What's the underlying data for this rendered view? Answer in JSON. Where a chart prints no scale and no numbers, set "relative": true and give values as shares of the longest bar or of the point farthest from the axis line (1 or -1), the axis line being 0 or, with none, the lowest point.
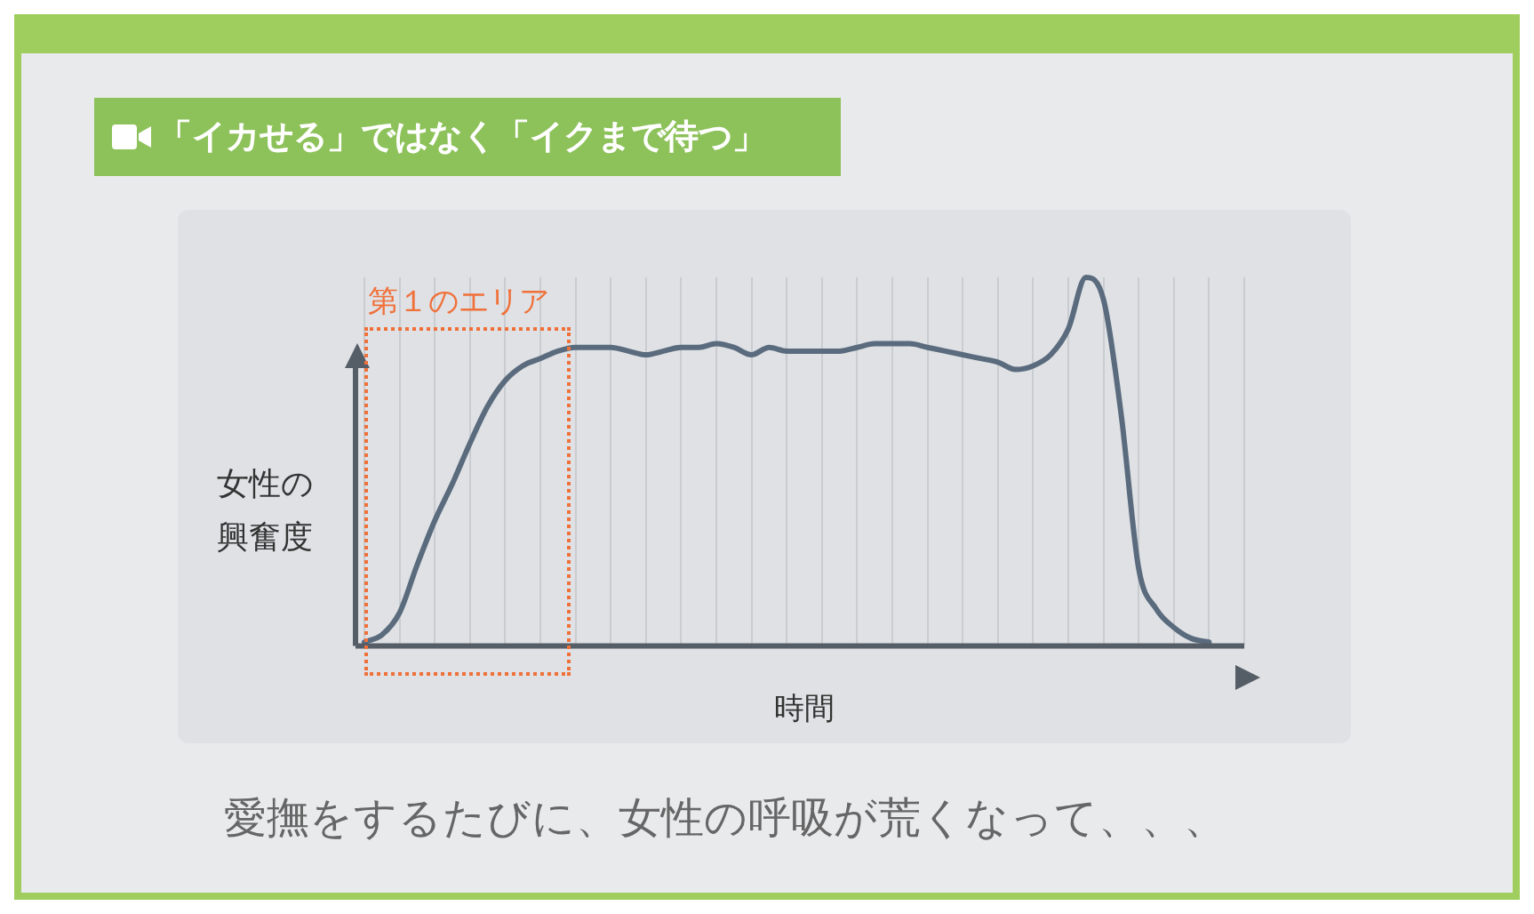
{
  "chart_data": {
    "type": "line",
    "title": "「イカせる」ではなく「イクまで待つ」",
    "xlabel": "時間",
    "ylabel": "女性の興奮度",
    "relative": true,
    "grid": "x",
    "marker": "none",
    "line_style": "solid",
    "legend": false,
    "categories": [
      null,
      null,
      null,
      null,
      null,
      null,
      null,
      null,
      null,
      null,
      null,
      null,
      null,
      null,
      null,
      null,
      null,
      null,
      null,
      null,
      null,
      null,
      null,
      null,
      null,
      null,
      null,
      null,
      null,
      null,
      null,
      null,
      null,
      null,
      null,
      null,
      null,
      null,
      null,
      null,
      null,
      null,
      null,
      null,
      null,
      null,
      null,
      null,
      null,
      null,
      null
    ],
    "series": [
      {
        "color": "#5a6b7e",
        "values": [
          0.01,
          0.03,
          0.09,
          0.22,
          0.34,
          0.44,
          0.55,
          0.65,
          0.72,
          0.76,
          0.78,
          0.8,
          0.81,
          0.81,
          0.81,
          0.8,
          0.79,
          0.8,
          0.81,
          0.81,
          0.82,
          0.81,
          0.79,
          0.81,
          0.8,
          0.8,
          0.8,
          0.8,
          0.81,
          0.82,
          0.82,
          0.82,
          0.81,
          0.8,
          0.79,
          0.78,
          0.77,
          0.75,
          0.76,
          0.79,
          0.86,
          1,
          0.94,
          0.63,
          0.21,
          0.1,
          0.05,
          0.02,
          0.01,
          null,
          null
        ]
      }
    ],
    "annotations": [
      "第１のエリア",
      "愛撫をするたびに、女性の呼吸が荒くなって、、、"
    ]
  }
}
